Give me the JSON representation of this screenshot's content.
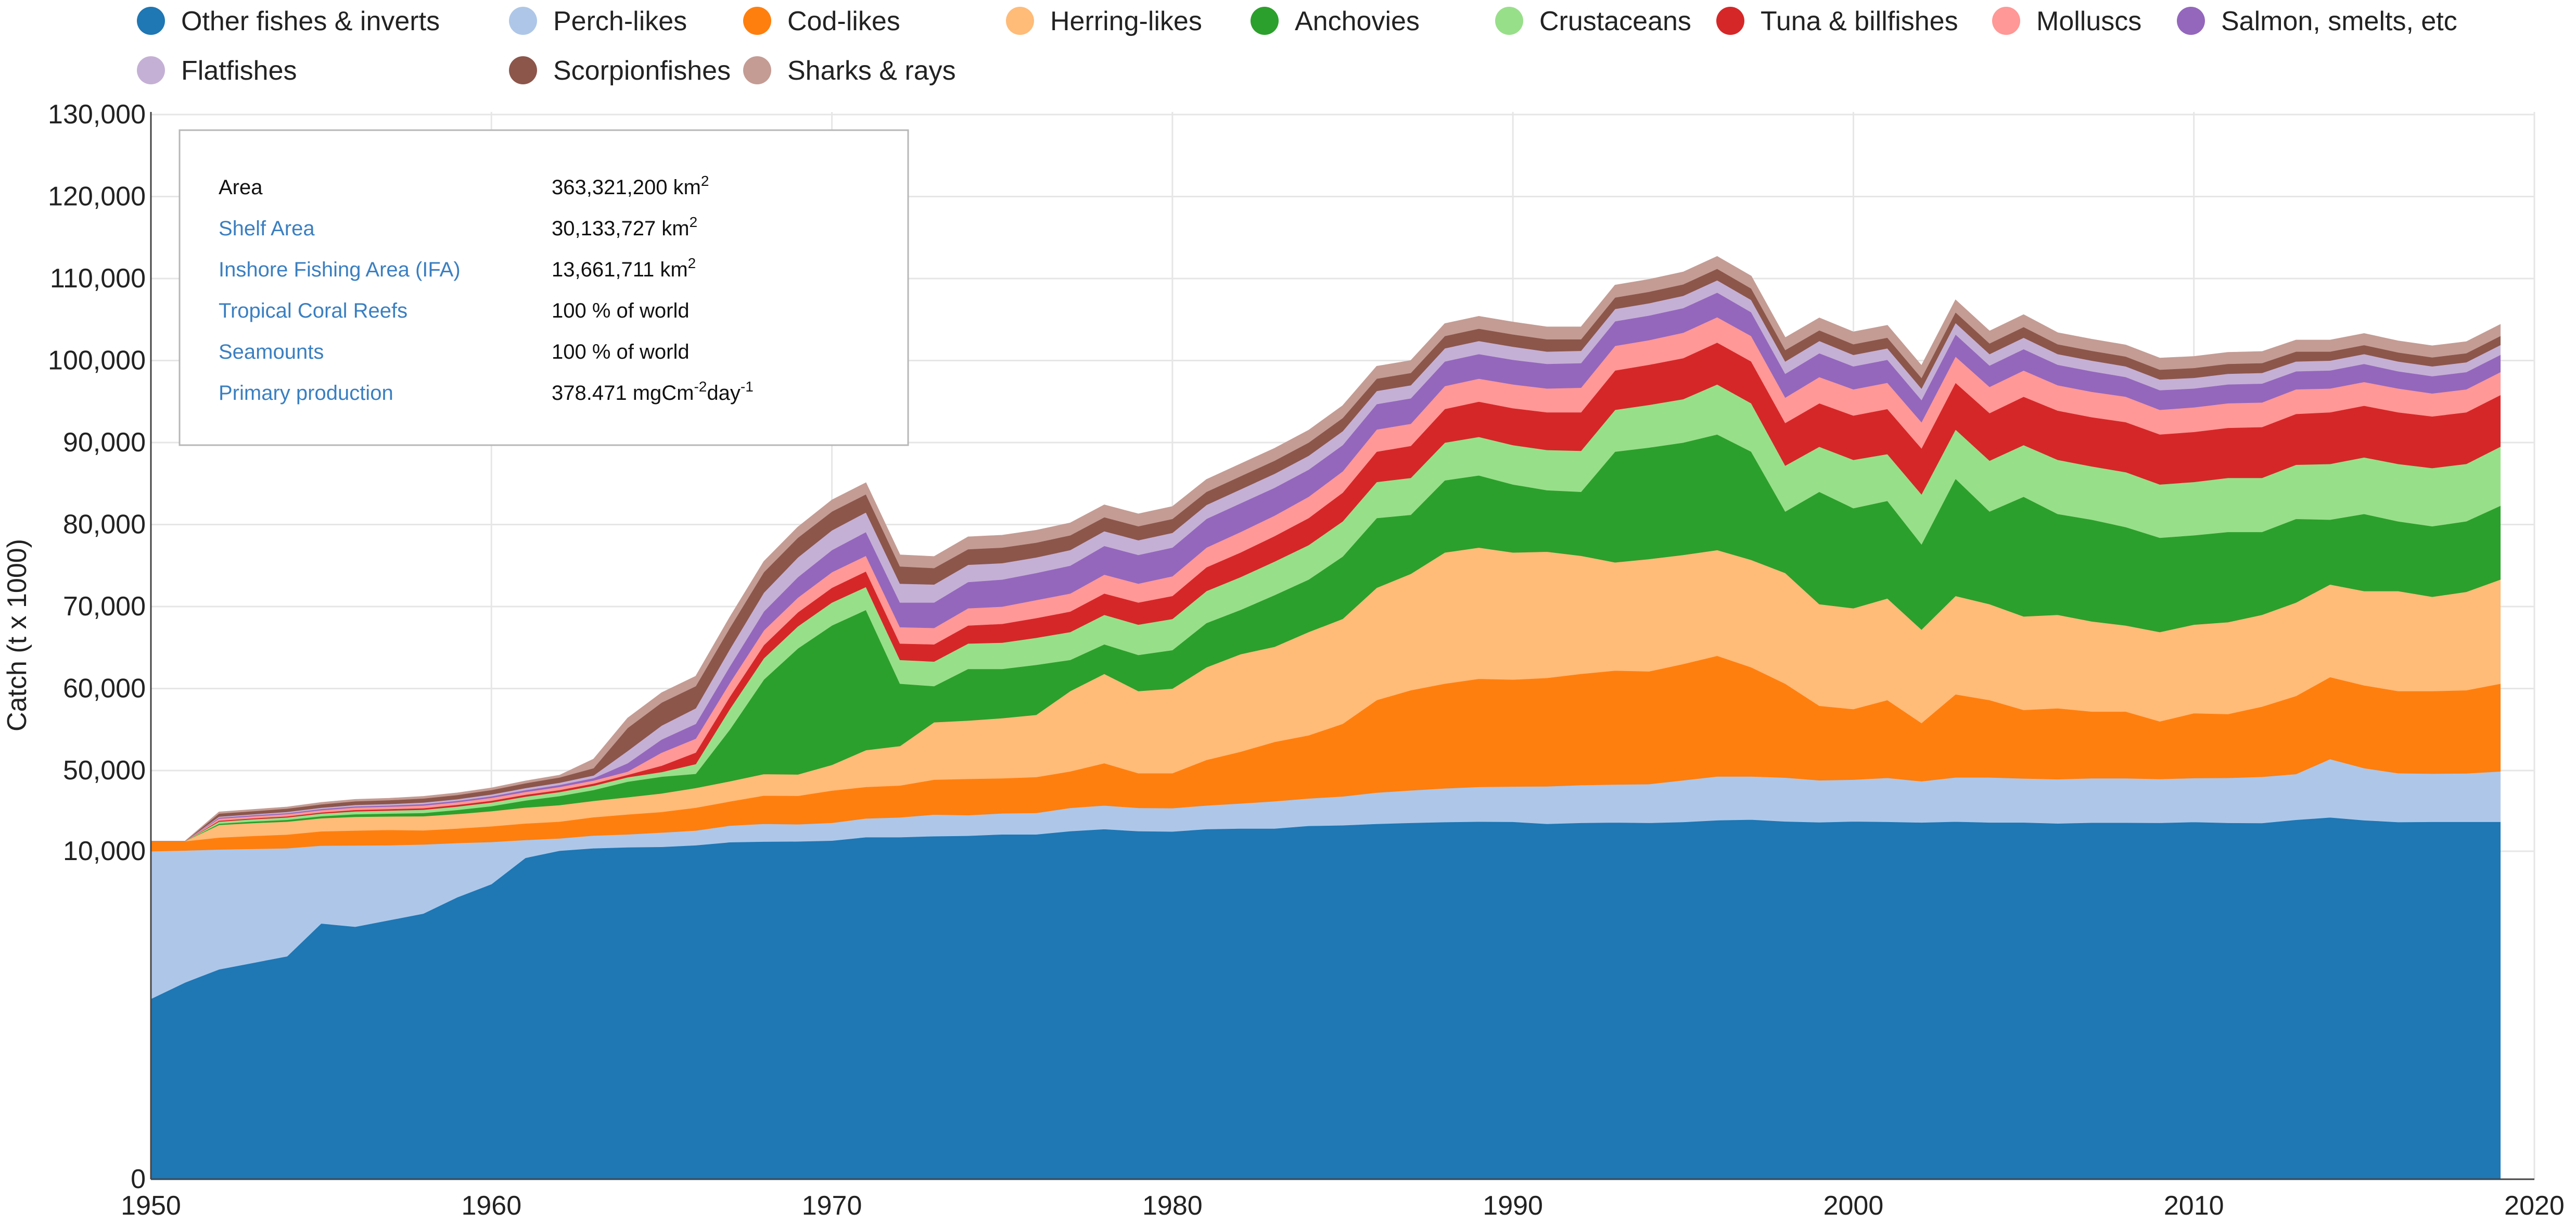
{
  "chart_data": {
    "type": "area",
    "stacked": true,
    "ylabel": "Catch (t x 1000)",
    "xlabel": "",
    "ylim": [
      0,
      130000
    ],
    "xlim": [
      1950,
      2020
    ],
    "x_ticks": [
      1950,
      1960,
      1970,
      1980,
      1990,
      2000,
      2010,
      2020
    ],
    "x_tick_labels": [
      "1950",
      "1960",
      "1970",
      "1980",
      "1990",
      "2000",
      "2010",
      "2020"
    ],
    "y_ticks": [
      0,
      10000,
      50000,
      60000,
      70000,
      80000,
      90000,
      100000,
      110000,
      120000,
      130000
    ],
    "y_tick_labels": [
      "0",
      "10,000",
      "50,000",
      "60,000",
      "70,000",
      "80,000",
      "90,000",
      "100,000",
      "110,000",
      "120,000",
      "130,000"
    ],
    "legend_position": "top",
    "x": [
      1950,
      1951,
      1952,
      1953,
      1954,
      1955,
      1956,
      1957,
      1958,
      1959,
      1960,
      1961,
      1962,
      1963,
      1964,
      1965,
      1966,
      1967,
      1968,
      1969,
      1970,
      1971,
      1972,
      1973,
      1974,
      1975,
      1976,
      1977,
      1978,
      1979,
      1980,
      1981,
      1982,
      1983,
      1984,
      1985,
      1986,
      1987,
      1988,
      1989,
      1990,
      1991,
      1992,
      1993,
      1994,
      1995,
      1996,
      1997,
      1998,
      1999,
      2000,
      2001,
      2002,
      2003,
      2004,
      2005,
      2006,
      2007,
      2008,
      2009,
      2010,
      2011,
      2012,
      2013,
      2014,
      2015,
      2016,
      2017,
      2018,
      2019
    ],
    "series": [
      {
        "name": "Other fishes & inverts",
        "color": "#1f77b4",
        "values": [
          5500,
          6000,
          6400,
          6600,
          6800,
          7800,
          7700,
          7900,
          8100,
          8600,
          9000,
          9800,
          10300,
          11500,
          12000,
          12200,
          13000,
          14500,
          14800,
          14900,
          15300,
          17000,
          17000,
          17500,
          17700,
          18400,
          18400,
          20000,
          21000,
          20000,
          19800,
          21000,
          21300,
          21300,
          22600,
          22900,
          23600,
          24100,
          24500,
          24700,
          24600,
          23600,
          24100,
          24300,
          24100,
          24500,
          25400,
          25700,
          24800,
          24400,
          24800,
          24600,
          24300,
          24700,
          24300,
          24300,
          23800,
          24200,
          24200,
          24100,
          24500,
          24100,
          24000,
          25600,
          26800,
          25400,
          24500,
          24600,
          24600,
          24600
        ]
      },
      {
        "name": "Perch-likes",
        "color": "#aec7e8",
        "values": [
          4500,
          4400,
          4500,
          4600,
          4700,
          5000,
          5200,
          5100,
          5300,
          5500,
          5600,
          5800,
          6100,
          6300,
          6400,
          7100,
          7300,
          8200,
          8800,
          8500,
          8800,
          9300,
          9800,
          10700,
          10200,
          10400,
          10600,
          11500,
          11700,
          11500,
          11600,
          11700,
          12400,
          13500,
          13600,
          14300,
          15500,
          16100,
          16700,
          17200,
          17500,
          18600,
          18700,
          18800,
          19200,
          20700,
          21700,
          21400,
          21700,
          20800,
          20700,
          21800,
          20400,
          21900,
          22300,
          21800,
          21900,
          22000,
          22000,
          21700,
          21800,
          22300,
          22900,
          22700,
          24600,
          24900,
          24200,
          23900,
          24000,
          25000
        ]
      },
      {
        "name": "Cod-likes",
        "color": "#ff7f0e",
        "values": [
          5000,
          4600,
          5900,
          6400,
          6800,
          7100,
          7400,
          7600,
          7000,
          7200,
          7800,
          8200,
          8300,
          9100,
          9900,
          10200,
          11300,
          12000,
          14000,
          14100,
          16000,
          15600,
          15800,
          17300,
          18000,
          17400,
          17800,
          18100,
          18200,
          17200,
          17300,
          18600,
          18600,
          18700,
          18100,
          18500,
          19500,
          19600,
          19400,
          19300,
          19000,
          19100,
          19000,
          19100,
          18800,
          17800,
          16900,
          15500,
          14100,
          12700,
          12000,
          12200,
          11100,
          12700,
          12000,
          11300,
          11900,
          11000,
          11000,
          10200,
          10700,
          10500,
          10900,
          10800,
          10000,
          10100,
          11000,
          11200,
          11200,
          11000
        ]
      },
      {
        "name": "Herring-likes",
        "color": "#ffbb78",
        "values": [
          0,
          0,
          6300,
          6400,
          6400,
          6500,
          6800,
          6700,
          7000,
          7200,
          7500,
          7900,
          8200,
          8100,
          8500,
          9200,
          9800,
          10000,
          10700,
          10600,
          10600,
          10600,
          10400,
          10400,
          10200,
          10200,
          10000,
          10100,
          10900,
          11000,
          11300,
          11300,
          11900,
          11600,
          12600,
          12800,
          13700,
          14200,
          16000,
          16000,
          15500,
          15400,
          14400,
          13200,
          13700,
          13300,
          12900,
          13100,
          13500,
          12400,
          12300,
          12400,
          11400,
          12000,
          11700,
          11400,
          11400,
          11000,
          10500,
          10900,
          10800,
          11200,
          11200,
          11400,
          11300,
          11500,
          12200,
          11500,
          12000,
          12700
        ]
      },
      {
        "name": "Anchovies",
        "color": "#2ca02c",
        "values": [
          0,
          0,
          600,
          800,
          900,
          1000,
          1300,
          1400,
          1600,
          2000,
          2500,
          3500,
          4500,
          5400,
          7700,
          8300,
          7000,
          10300,
          12800,
          16800,
          17000,
          17100,
          7600,
          4400,
          6300,
          6000,
          6100,
          3800,
          3600,
          4400,
          4700,
          5400,
          5400,
          6300,
          6400,
          7600,
          8500,
          7200,
          8800,
          8800,
          8300,
          7500,
          7800,
          13500,
          13600,
          13700,
          14100,
          13200,
          7500,
          13700,
          12200,
          11900,
          10400,
          14300,
          11300,
          14600,
          12300,
          12400,
          12000,
          11500,
          10900,
          11000,
          10100,
          10200,
          7900,
          9400,
          8500,
          8600,
          8600,
          9000
        ]
      },
      {
        "name": "Crustaceans",
        "color": "#98df8a",
        "values": [
          0,
          0,
          1000,
          1100,
          1200,
          1300,
          1400,
          1500,
          1600,
          1700,
          1800,
          1900,
          2000,
          2100,
          2200,
          2300,
          2400,
          2500,
          2600,
          2700,
          2800,
          2800,
          2900,
          3000,
          3100,
          3200,
          3300,
          3400,
          3600,
          3700,
          3800,
          3900,
          4000,
          4100,
          4200,
          4300,
          4400,
          4500,
          4600,
          4700,
          4800,
          4900,
          5000,
          5100,
          5200,
          5300,
          6100,
          5900,
          5600,
          5500,
          5900,
          5700,
          6100,
          6000,
          6200,
          6300,
          6600,
          6500,
          6700,
          6500,
          6500,
          6600,
          6600,
          6600,
          6800,
          6900,
          7000,
          7100,
          7000,
          7200
        ]
      },
      {
        "name": "Tuna & billfishes",
        "color": "#d62728",
        "values": [
          0,
          0,
          500,
          500,
          550,
          600,
          700,
          750,
          800,
          850,
          900,
          950,
          1000,
          1100,
          1200,
          1300,
          1400,
          1500,
          1600,
          1700,
          1800,
          1900,
          2000,
          2100,
          2200,
          2300,
          2400,
          2500,
          2600,
          2700,
          2800,
          2900,
          3000,
          3100,
          3300,
          3500,
          3700,
          3900,
          4100,
          4300,
          4500,
          4600,
          4700,
          4800,
          4900,
          5000,
          5100,
          5100,
          5200,
          5300,
          5400,
          5500,
          5600,
          5700,
          5800,
          5900,
          6000,
          6000,
          6100,
          6100,
          6100,
          6100,
          6200,
          6200,
          6300,
          6300,
          6300,
          6300,
          6300,
          6300
        ]
      },
      {
        "name": "Molluscs",
        "color": "#ff9896",
        "values": [
          0,
          0,
          1000,
          1000,
          1100,
          1100,
          1200,
          1200,
          1300,
          1300,
          1400,
          1400,
          1500,
          1500,
          1600,
          1600,
          1700,
          1700,
          1800,
          1800,
          1900,
          1900,
          2000,
          2000,
          2100,
          2100,
          2200,
          2200,
          2300,
          2300,
          2400,
          2400,
          2500,
          2500,
          2600,
          2600,
          2700,
          2700,
          2800,
          2800,
          2900,
          2900,
          3000,
          3000,
          3000,
          3100,
          3100,
          3100,
          3100,
          3200,
          3200,
          3200,
          3200,
          3200,
          3200,
          3200,
          3100,
          3100,
          3100,
          3000,
          3000,
          3000,
          3000,
          3000,
          2900,
          2900,
          2900,
          2800,
          2800,
          2800
        ]
      },
      {
        "name": "Salmon, smelts, etc",
        "color": "#9467bd",
        "values": [
          0,
          0,
          500,
          500,
          500,
          600,
          600,
          600,
          700,
          700,
          800,
          900,
          1000,
          1200,
          1400,
          1600,
          1800,
          2000,
          2300,
          2500,
          2700,
          2900,
          3000,
          3100,
          3200,
          3300,
          3300,
          3400,
          3500,
          3500,
          3500,
          3500,
          3500,
          3400,
          3300,
          3200,
          3100,
          3100,
          3000,
          3000,
          3000,
          3000,
          3000,
          3000,
          3000,
          3000,
          3000,
          2900,
          2900,
          2900,
          2800,
          2800,
          2700,
          2700,
          2600,
          2600,
          2500,
          2500,
          2400,
          2400,
          2300,
          2300,
          2300,
          2200,
          2200,
          2200,
          2100,
          2100,
          2100,
          2100
        ]
      },
      {
        "name": "Flatfishes",
        "color": "#c5b0d5",
        "values": [
          0,
          0,
          500,
          500,
          600,
          600,
          700,
          700,
          800,
          800,
          900,
          1000,
          1100,
          1300,
          1500,
          1700,
          1900,
          2100,
          2300,
          2400,
          2400,
          2400,
          2300,
          2200,
          2100,
          2000,
          1900,
          1900,
          1800,
          1800,
          1800,
          1700,
          1700,
          1700,
          1700,
          1700,
          1600,
          1600,
          1600,
          1600,
          1600,
          1500,
          1500,
          1500,
          1500,
          1500,
          1500,
          1500,
          1500,
          1500,
          1400,
          1400,
          1400,
          1400,
          1400,
          1400,
          1300,
          1300,
          1300,
          1300,
          1300,
          1300,
          1300,
          1200,
          1200,
          1200,
          1200,
          1200,
          1200,
          1200
        ]
      },
      {
        "name": "Scorpionfishes",
        "color": "#8c564b",
        "values": [
          0,
          0,
          1500,
          1500,
          1600,
          1700,
          1800,
          1900,
          2000,
          2100,
          2200,
          2400,
          2600,
          2700,
          2800,
          2800,
          2700,
          2600,
          2500,
          2400,
          2300,
          2200,
          2100,
          2000,
          1900,
          1900,
          1800,
          1800,
          1700,
          1700,
          1700,
          1600,
          1600,
          1600,
          1600,
          1600,
          1500,
          1500,
          1500,
          1500,
          1500,
          1500,
          1400,
          1400,
          1400,
          1400,
          1400,
          1400,
          1400,
          1300,
          1300,
          1300,
          1300,
          1300,
          1300,
          1300,
          1200,
          1200,
          1200,
          1200,
          1200,
          1200,
          1200,
          1200,
          1100,
          1100,
          1100,
          1100,
          1100,
          1100
        ]
      },
      {
        "name": "Sharks & rays",
        "color": "#c49c94",
        "values": [
          0,
          0,
          800,
          800,
          800,
          900,
          900,
          900,
          1000,
          1000,
          1000,
          1100,
          1100,
          1100,
          1200,
          1200,
          1200,
          1300,
          1300,
          1300,
          1400,
          1400,
          1400,
          1400,
          1500,
          1500,
          1500,
          1500,
          1500,
          1500,
          1500,
          1500,
          1500,
          1500,
          1500,
          1500,
          1500,
          1500,
          1500,
          1500,
          1500,
          1500,
          1500,
          1500,
          1500,
          1500,
          1500,
          1500,
          1500,
          1500,
          1500,
          1500,
          1500,
          1500,
          1500,
          1500,
          1400,
          1400,
          1400,
          1400,
          1400,
          1400,
          1400,
          1400,
          1400,
          1400,
          1400,
          1400,
          1400,
          1400
        ]
      }
    ]
  },
  "info_box": {
    "rows": [
      {
        "label": "Area",
        "value": "363,321,200 km",
        "sup": "2"
      },
      {
        "label": "Shelf Area",
        "value": "30,133,727 km",
        "sup": "2"
      },
      {
        "label": "Inshore Fishing Area (IFA)",
        "value": "13,661,711 km",
        "sup": "2"
      },
      {
        "label": "Tropical Coral Reefs",
        "value": "100 % of world",
        "sup": ""
      },
      {
        "label": "Seamounts",
        "value": "100 % of world",
        "sup": ""
      }
    ],
    "primary_production": {
      "label": "Primary production",
      "v1": "378.471 mgCm",
      "sup1": "-2",
      "v2": "day",
      "sup2": "-1"
    },
    "label_colors": {
      "default": "#111111",
      "link": "#3a7fc1"
    }
  }
}
